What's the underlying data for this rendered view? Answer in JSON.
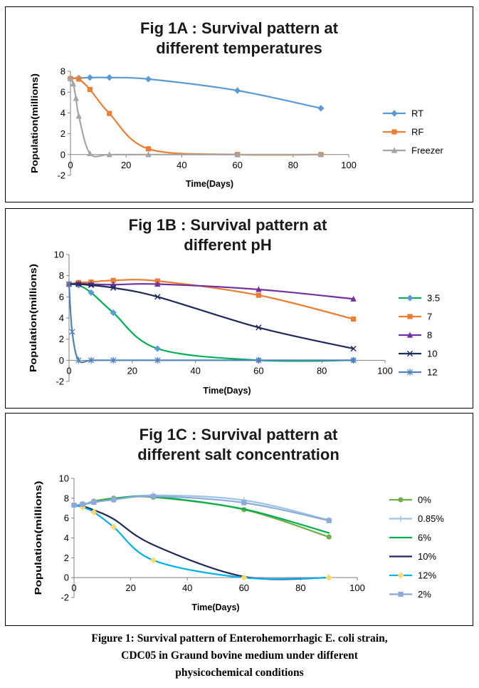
{
  "chart_data": [
    {
      "type": "line",
      "title_lines": [
        "Fig 1A : Survival pattern at",
        "different temperatures"
      ],
      "xlabel": "Time(Days)",
      "ylabel": "Population(millions)",
      "xlim": [
        0,
        100
      ],
      "xticks": [
        0,
        20,
        40,
        60,
        80,
        100
      ],
      "ylim": [
        -2,
        8
      ],
      "yticks": [
        -2,
        0,
        2,
        4,
        6,
        8
      ],
      "legend_position": "right",
      "series": [
        {
          "name": "RT",
          "color": "#5b9bd5",
          "marker": "diamond",
          "x": [
            0,
            3,
            7,
            14,
            28,
            60,
            90
          ],
          "y": [
            7.3,
            7.35,
            7.4,
            7.4,
            7.25,
            6.15,
            4.45
          ]
        },
        {
          "name": "RF",
          "color": "#ed7d31",
          "marker": "square",
          "x": [
            0,
            3,
            7,
            14,
            28,
            60,
            90
          ],
          "y": [
            7.3,
            7.25,
            6.25,
            3.95,
            0.55,
            0,
            0
          ]
        },
        {
          "name": "Freezer",
          "color": "#a5a5a5",
          "marker": "triangle",
          "x": [
            0,
            1,
            2,
            3,
            7,
            14,
            28,
            60,
            90
          ],
          "y": [
            7.3,
            6.8,
            5.4,
            3.7,
            0.1,
            0,
            0,
            0,
            0
          ]
        }
      ]
    },
    {
      "type": "line",
      "title_lines": [
        "Fig 1B : Survival pattern at",
        "different pH"
      ],
      "xlabel": "Time(Days)",
      "ylabel": "Population(millions)",
      "xlim": [
        0,
        100
      ],
      "xticks": [
        0,
        20,
        40,
        60,
        80,
        100
      ],
      "ylim": [
        -2,
        10
      ],
      "yticks": [
        -2,
        0,
        2,
        4,
        6,
        8,
        10
      ],
      "legend_position": "right",
      "series": [
        {
          "name": "3.5",
          "color": "#5b9bd5",
          "marker": "diamond",
          "curve_color": "#00b050",
          "x": [
            0,
            3,
            7,
            14,
            28,
            60,
            90
          ],
          "y": [
            7.2,
            7.1,
            6.4,
            4.5,
            1.1,
            0,
            0
          ]
        },
        {
          "name": "7",
          "color": "#ed7d31",
          "marker": "square",
          "x": [
            0,
            3,
            7,
            14,
            28,
            60,
            90
          ],
          "y": [
            7.2,
            7.35,
            7.4,
            7.55,
            7.5,
            6.15,
            3.9
          ]
        },
        {
          "name": "8",
          "color": "#7030a0",
          "marker": "triangle",
          "x": [
            0,
            3,
            7,
            14,
            28,
            60,
            90
          ],
          "y": [
            7.2,
            7.25,
            7.2,
            7.15,
            7.2,
            6.7,
            5.8
          ]
        },
        {
          "name": "10",
          "color": "#1f2a5c",
          "marker": "x",
          "x": [
            0,
            3,
            7,
            14,
            28,
            60,
            90
          ],
          "y": [
            7.2,
            7.2,
            7.1,
            6.85,
            6.0,
            3.1,
            1.1
          ]
        },
        {
          "name": "12",
          "color": "#4f81bd",
          "marker": "star",
          "x": [
            0,
            1,
            3,
            7,
            14,
            28,
            60,
            90
          ],
          "y": [
            7.2,
            2.7,
            0,
            0,
            0,
            0,
            0,
            0
          ]
        }
      ]
    },
    {
      "type": "line",
      "title_lines": [
        "Fig 1C : Survival pattern at",
        "different salt concentration"
      ],
      "xlabel": "Time(Days)",
      "ylabel": "Population(millions)",
      "xlim": [
        0,
        100
      ],
      "xticks": [
        0,
        20,
        40,
        60,
        80,
        100
      ],
      "ylim": [
        -2,
        10
      ],
      "yticks": [
        -2,
        0,
        2,
        4,
        6,
        8,
        10
      ],
      "legend_position": "right",
      "series": [
        {
          "name": "0%",
          "color": "#70ad47",
          "marker": "circle",
          "x": [
            0,
            3,
            7,
            14,
            28,
            60,
            90
          ],
          "y": [
            7.3,
            7.3,
            7.7,
            8.0,
            8.1,
            6.85,
            4.1
          ]
        },
        {
          "name": "0.85%",
          "color": "#9dc3e6",
          "marker": "plus",
          "x": [
            0,
            3,
            7,
            14,
            28,
            60,
            90
          ],
          "y": [
            7.3,
            7.4,
            7.6,
            7.85,
            8.3,
            7.8,
            5.8
          ]
        },
        {
          "name": "6%",
          "color": "#00b050",
          "marker": "none",
          "x": [
            0,
            3,
            7,
            14,
            28,
            60,
            90
          ],
          "y": [
            7.3,
            7.35,
            7.6,
            7.95,
            8.15,
            6.9,
            4.5
          ]
        },
        {
          "name": "10%",
          "color": "#1f2a5c",
          "marker": "none",
          "x": [
            0,
            3,
            7,
            14,
            28,
            60,
            90
          ],
          "y": [
            7.3,
            7.2,
            6.8,
            5.9,
            3.3,
            0.1,
            0
          ]
        },
        {
          "name": "12%",
          "color": "#00b0f0",
          "marker": "diamond",
          "marker_color": "#ffd966",
          "x": [
            0,
            3,
            7,
            14,
            28,
            60,
            90
          ],
          "y": [
            7.3,
            7.1,
            6.6,
            5.1,
            1.75,
            0,
            0
          ]
        },
        {
          "name": "2%",
          "color": "#8ea9db",
          "marker": "square",
          "x": [
            0,
            3,
            7,
            14,
            28,
            60,
            90
          ],
          "y": [
            7.3,
            7.4,
            7.6,
            7.85,
            8.2,
            7.55,
            5.75
          ]
        }
      ]
    }
  ],
  "caption": {
    "line1": "Figure 1: Survival pattern of Enterohemorrhagic E. coli strain,",
    "line2": "CDC05 in Graund bovine medium under different",
    "line3": "physicochemical conditions"
  }
}
